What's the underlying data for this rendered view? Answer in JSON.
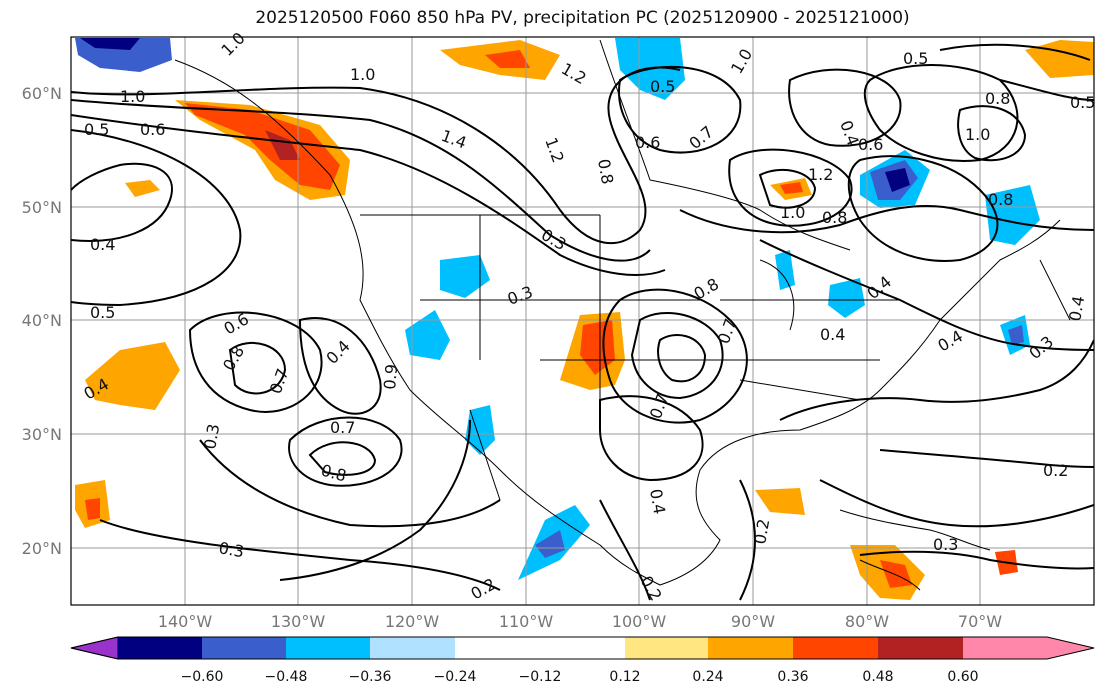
{
  "title": "2025120500 F060 850 hPa PV, precipitation PC (2025120900 - 2025121000)",
  "axes": {
    "lat_labels": [
      "20°N",
      "30°N",
      "40°N",
      "50°N",
      "60°N"
    ],
    "lon_labels": [
      "140°W",
      "130°W",
      "120°W",
      "110°W",
      "100°W",
      "90°W",
      "80°W",
      "70°W"
    ]
  },
  "colorbar": {
    "ticks": [
      "−0.60",
      "−0.48",
      "−0.36",
      "−0.24",
      "−0.12",
      "0.12",
      "0.24",
      "0.36",
      "0.48",
      "0.60"
    ],
    "colors": [
      "#9933cc",
      "#000080",
      "#3a5fcd",
      "#00bfff",
      "#b0e2ff",
      "#ffffff",
      "#ffe680",
      "#ffa500",
      "#ff4500",
      "#b22222",
      "#ff88aa"
    ]
  },
  "contour_labels": [
    "1.0",
    "1.2",
    "1.0",
    "1.0",
    "0.5",
    "0.6",
    "1.4",
    "1.2",
    "0.5",
    "1.0",
    "0.6",
    "0.7",
    "0.8",
    "1.2",
    "1.0",
    "0.8",
    "0.6",
    "0.4",
    "0.8",
    "1.0",
    "0.8",
    "0.4",
    "0.5",
    "0.6",
    "0.8",
    "0.7",
    "0.4",
    "0.4",
    "0.3",
    "0.7",
    "0.8",
    "0.3",
    "0.3",
    "0.4",
    "0.7",
    "0.2",
    "0.2",
    "0.4",
    "0.3",
    "0.2",
    "0.3",
    "0.2",
    "0.4",
    "0.7",
    "0.5",
    "0.4",
    "0.9",
    "0.8",
    "0.4",
    "0.5",
    "0.3"
  ]
}
